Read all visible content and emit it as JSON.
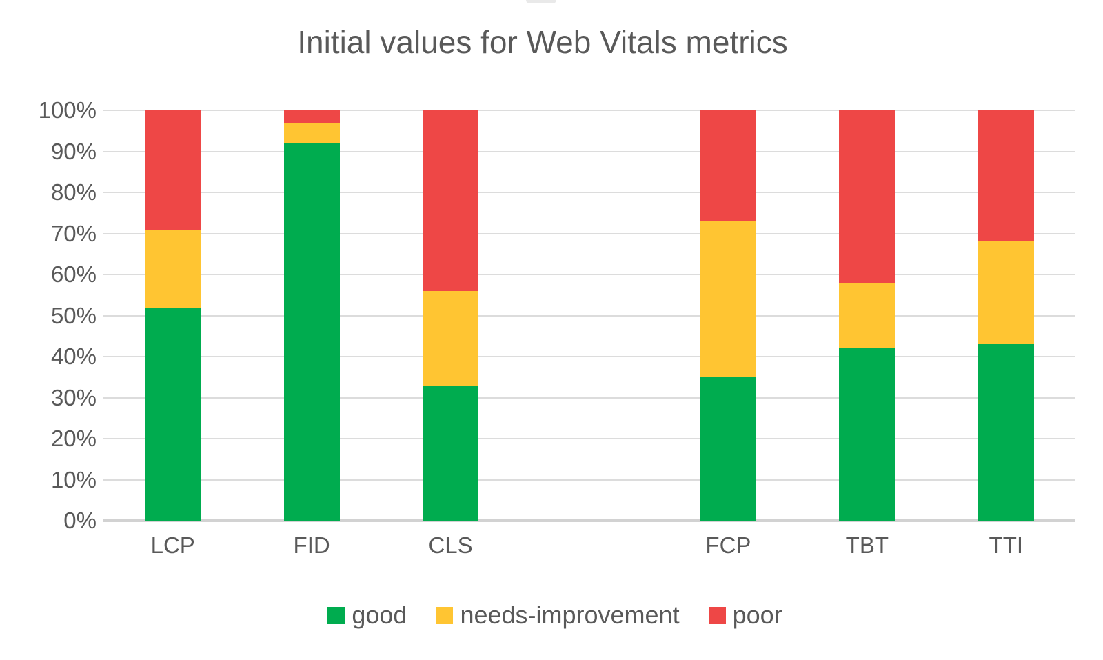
{
  "title": "Initial values for Web Vitals metrics",
  "colors": {
    "good": "#00AC4F",
    "needs_improvement": "#FFC532",
    "poor": "#EE4746",
    "text": "#595959",
    "gridline": "#DCDCDC",
    "axis_line": "#D2D2D2",
    "background": "#FFFFFF"
  },
  "chart_data": {
    "type": "bar",
    "stacked": true,
    "units": "percent",
    "title": "Initial values for Web Vitals metrics",
    "xlabel": "",
    "ylabel": "",
    "ylim": [
      0,
      100
    ],
    "ytick_step": 10,
    "ytick_labels": [
      "0%",
      "10%",
      "20%",
      "30%",
      "40%",
      "50%",
      "60%",
      "70%",
      "80%",
      "90%",
      "100%"
    ],
    "grid": "horizontal",
    "legend_position": "bottom",
    "categories": [
      "LCP",
      "FID",
      "CLS",
      "",
      "FCP",
      "TBT",
      "TTI"
    ],
    "series": [
      {
        "name": "good",
        "color": "#00AC4F",
        "values": [
          52,
          92,
          33,
          null,
          35,
          42,
          43
        ]
      },
      {
        "name": "needs-improvement",
        "color": "#FFC532",
        "values": [
          19,
          5,
          23,
          null,
          38,
          16,
          25
        ]
      },
      {
        "name": "poor",
        "color": "#EE4746",
        "values": [
          29,
          3,
          44,
          null,
          27,
          42,
          32
        ]
      }
    ]
  }
}
